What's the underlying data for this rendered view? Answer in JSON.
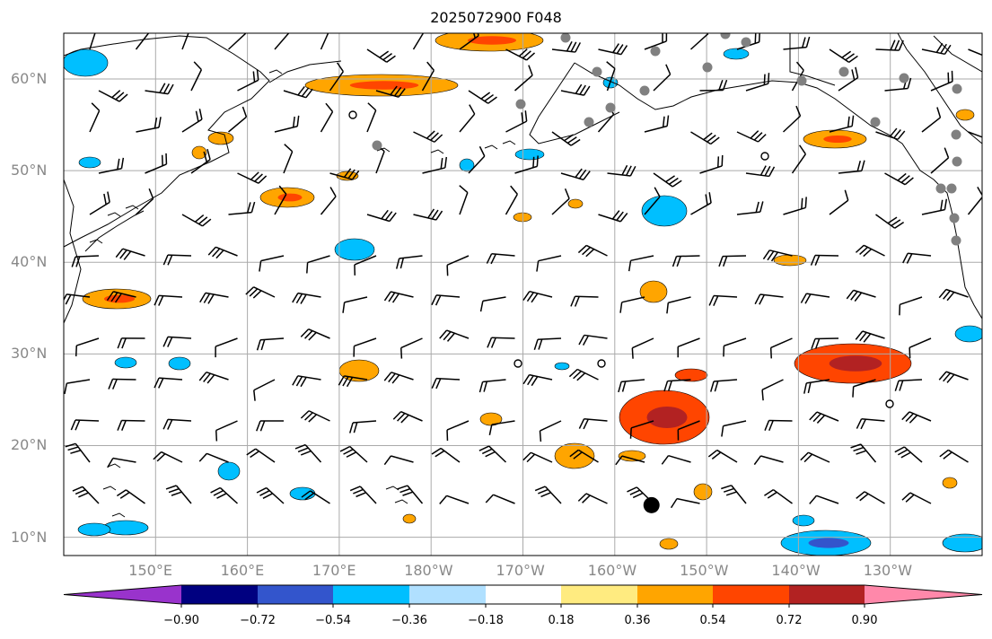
{
  "title": "2025072900 F048",
  "map": {
    "projection": "equirectangular",
    "lon_range": [
      140,
      240
    ],
    "lat_range": [
      8,
      65
    ],
    "gridlines": true,
    "coastlines": true,
    "lat_labels": [
      "60°N",
      "50°N",
      "40°N",
      "30°N",
      "20°N",
      "10°N"
    ],
    "lon_labels": [
      "150°E",
      "160°E",
      "170°E",
      "180°W",
      "170°W",
      "160°W",
      "150°W",
      "140°W",
      "130°W"
    ],
    "wind_barbs": true,
    "station_markers": "grey-dots",
    "tropical_cyclone_marker": {
      "lon": 204,
      "lat": 13.5
    }
  },
  "colorbar": {
    "extend": "both",
    "ticks": [
      "−0.90",
      "−0.72",
      "−0.54",
      "−0.36",
      "−0.18",
      "0.18",
      "0.36",
      "0.54",
      "0.72",
      "0.90"
    ],
    "colors": [
      "#9933cc",
      "#000080",
      "#3355cc",
      "#00bfff",
      "#b0e0ff",
      "#ffffff",
      "#ffeb80",
      "#ffa500",
      "#ff4500",
      "#b22222",
      "#ff88aa"
    ]
  }
}
